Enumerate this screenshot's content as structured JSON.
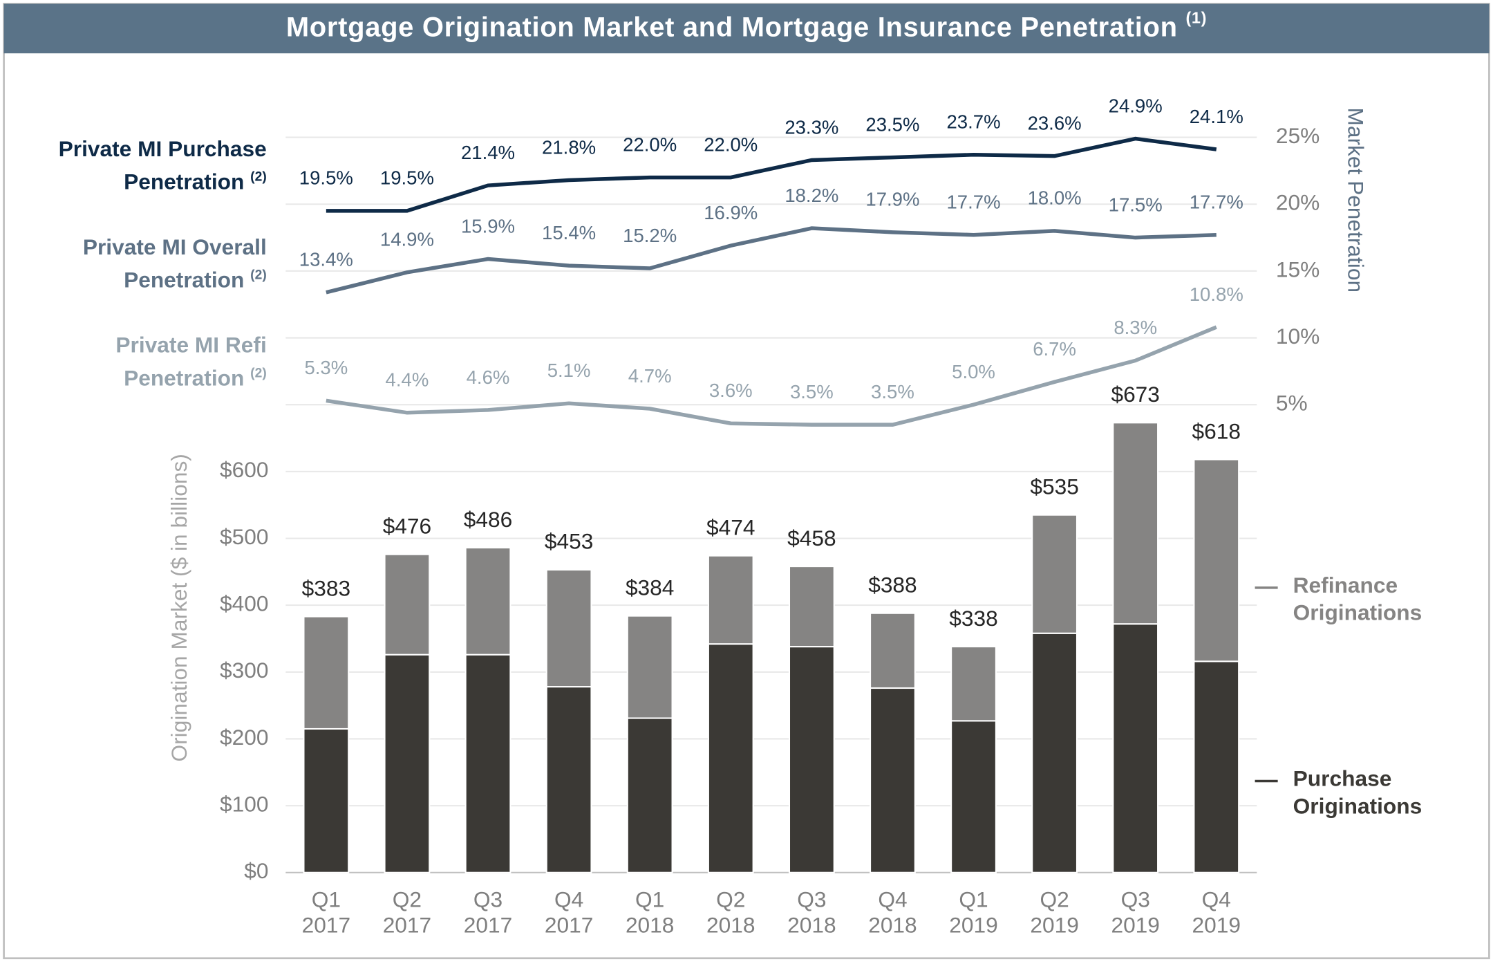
{
  "chart_data": {
    "type": "bar",
    "stacked": true,
    "title": "Mortgage Origination Market and Mortgage Insurance Penetration",
    "title_note": "(1)",
    "ylabel": "Origination Market ($ in billions)",
    "y2label": "Market Penetration",
    "categories": [
      [
        "Q1",
        "2017"
      ],
      [
        "Q2",
        "2017"
      ],
      [
        "Q3",
        "2017"
      ],
      [
        "Q4",
        "2017"
      ],
      [
        "Q1",
        "2018"
      ],
      [
        "Q2",
        "2018"
      ],
      [
        "Q3",
        "2018"
      ],
      [
        "Q4",
        "2018"
      ],
      [
        "Q1",
        "2019"
      ],
      [
        "Q2",
        "2019"
      ],
      [
        "Q3",
        "2019"
      ],
      [
        "Q4",
        "2019"
      ]
    ],
    "series": [
      {
        "name": "Purchase Originations",
        "type": "bar",
        "color": "#3b3935",
        "values": [
          215,
          326,
          326,
          278,
          231,
          342,
          338,
          276,
          227,
          358,
          372,
          316
        ]
      },
      {
        "name": "Refinance Originations",
        "type": "bar",
        "color": "#858483",
        "values": [
          168,
          150,
          160,
          175,
          153,
          132,
          120,
          112,
          111,
          177,
          301,
          302
        ]
      },
      {
        "name": "Private MI Purchase Penetration",
        "note": "(2)",
        "type": "line",
        "axis": "y2",
        "color": "#0e2a47",
        "values": [
          19.5,
          19.5,
          21.4,
          21.8,
          22.0,
          22.0,
          23.3,
          23.5,
          23.7,
          23.6,
          24.9,
          24.1
        ],
        "value_labels": [
          "19.5%",
          "19.5%",
          "21.4%",
          "21.8%",
          "22.0%",
          "22.0%",
          "23.3%",
          "23.5%",
          "23.7%",
          "23.6%",
          "24.9%",
          "24.1%"
        ]
      },
      {
        "name": "Private MI Overall Penetration",
        "note": "(2)",
        "type": "line",
        "axis": "y2",
        "color": "#5d7185",
        "values": [
          13.4,
          14.9,
          15.9,
          15.4,
          15.2,
          16.9,
          18.2,
          17.9,
          17.7,
          18.0,
          17.5,
          17.7
        ],
        "value_labels": [
          "13.4%",
          "14.9%",
          "15.9%",
          "15.4%",
          "15.2%",
          "16.9%",
          "18.2%",
          "17.9%",
          "17.7%",
          "18.0%",
          "17.5%",
          "17.7%"
        ]
      },
      {
        "name": "Private MI Refi Penetration",
        "note": "(2)",
        "type": "line",
        "axis": "y2",
        "color": "#95a3ad",
        "values": [
          5.3,
          4.4,
          4.6,
          5.1,
          4.7,
          3.6,
          3.5,
          3.5,
          5.0,
          6.7,
          8.3,
          10.8
        ],
        "value_labels": [
          "5.3%",
          "4.4%",
          "4.6%",
          "5.1%",
          "4.7%",
          "3.6%",
          "3.5%",
          "3.5%",
          "5.0%",
          "6.7%",
          "8.3%",
          "10.8%"
        ]
      }
    ],
    "totals": [
      383,
      476,
      486,
      453,
      384,
      474,
      458,
      388,
      338,
      535,
      673,
      618
    ],
    "total_labels": [
      "$383",
      "$476",
      "$486",
      "$453",
      "$384",
      "$474",
      "$458",
      "$388",
      "$338",
      "$535",
      "$673",
      "$618"
    ],
    "ylim": [
      0,
      1200
    ],
    "yticks": [
      {
        "value": 0,
        "label": "$0"
      },
      {
        "value": 100,
        "label": "$100"
      },
      {
        "value": 200,
        "label": "$200"
      },
      {
        "value": 300,
        "label": "$300"
      },
      {
        "value": 400,
        "label": "$400"
      },
      {
        "value": 500,
        "label": "$500"
      },
      {
        "value": 600,
        "label": "$600"
      }
    ],
    "y2lim": [
      -30,
      30
    ],
    "y2ticks": [
      {
        "value": 5,
        "label": "5%"
      },
      {
        "value": 10,
        "label": "10%"
      },
      {
        "value": 15,
        "label": "15%"
      },
      {
        "value": 20,
        "label": "20%"
      },
      {
        "value": 25,
        "label": "25%"
      }
    ],
    "grid": true
  }
}
